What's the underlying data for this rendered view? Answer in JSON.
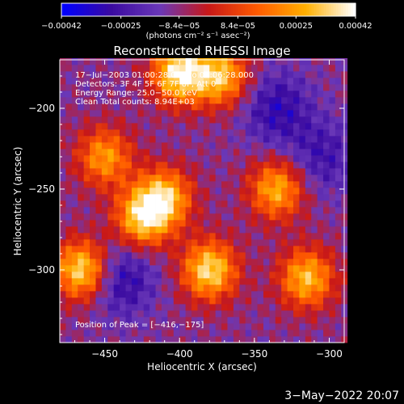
{
  "chart_data": {
    "type": "heatmap",
    "title": "Reconstructed RHESSI Image",
    "xlabel": "Heliocentric X (arcsec)",
    "ylabel": "Heliocentric Y (arcsec)",
    "xlim": [
      -480,
      -290
    ],
    "ylim": [
      -345,
      -170
    ],
    "x_ticks": [
      -450,
      -400,
      -350,
      -300
    ],
    "y_ticks": [
      -200,
      -250,
      -300
    ],
    "x_tick_labels": [
      "−450",
      "−400",
      "−350",
      "−300"
    ],
    "y_tick_labels": [
      "−200",
      "−250",
      "−300"
    ],
    "colorbar": {
      "range": [
        -0.00042,
        0.00042
      ],
      "ticks": [
        -0.00042,
        -0.00025,
        -8.4e-05,
        8.4e-05,
        0.00025,
        0.00042
      ],
      "tick_labels": [
        "−0.00042",
        "−0.00025",
        "−8.4e−05",
        "8.4e−05",
        "0.00025",
        "0.00042"
      ],
      "label": "(photons cm⁻² s⁻¹ asec⁻²)",
      "colors": [
        "#0000ff",
        "#3a0aa0",
        "#6a38b8",
        "#c81818",
        "#ff5a00",
        "#ffb000",
        "#ffffff"
      ]
    },
    "annotations": [
      "17−Jul−2003 01:00:28.000 to 01:06:28.000",
      "Detectors: 3F 4F 5F 6F 7F 8F, Att 0",
      "Energy Range: 25.0−50.0 keV",
      "Clean    Total counts: 8.94E+03"
    ],
    "peak_label": "Position of Peak = [−416,−175]",
    "peak": [
      -416,
      -175
    ],
    "bright_sources": [
      {
        "x": -465,
        "y": -300,
        "intensity": 0.00038
      },
      {
        "x": -425,
        "y": -268,
        "intensity": 0.00032
      },
      {
        "x": -400,
        "y": -178,
        "intensity": 0.0004
      },
      {
        "x": -380,
        "y": -300,
        "intensity": 0.00036
      },
      {
        "x": -372,
        "y": -180,
        "intensity": 0.0003
      },
      {
        "x": -335,
        "y": -250,
        "intensity": 0.00028
      },
      {
        "x": -315,
        "y": -305,
        "intensity": 0.0003
      },
      {
        "x": -410,
        "y": -255,
        "intensity": 0.0003
      },
      {
        "x": -450,
        "y": -230,
        "intensity": 0.00024
      }
    ],
    "dark_regions": [
      {
        "x": -335,
        "y": -200,
        "intensity": -0.0003
      },
      {
        "x": -440,
        "y": -305,
        "intensity": -0.00032
      },
      {
        "x": -305,
        "y": -230,
        "intensity": -0.00026
      }
    ]
  },
  "footer": {
    "date": "3−May−2022 20:07"
  }
}
